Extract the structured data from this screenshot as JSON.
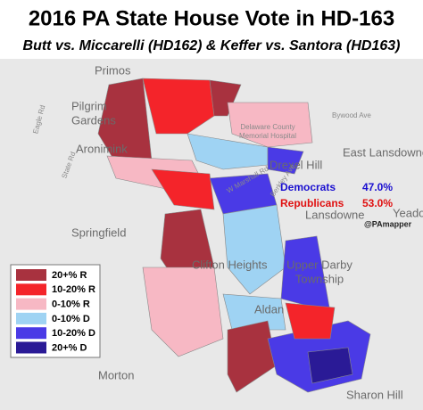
{
  "header": {
    "title": "2016 PA State House Vote in HD-163",
    "subtitle": "Butt vs. Miccarelli (HD162) & Keffer vs. Santora (HD163)"
  },
  "results": [
    {
      "party": "Democrats",
      "value": 47.0,
      "label": "47.0%",
      "color": "#1a0fd0"
    },
    {
      "party": "Republicans",
      "value": 53.0,
      "label": "53.0%",
      "color": "#e01010"
    }
  ],
  "credit": "@PAmapper",
  "legend": [
    {
      "label": "20+% R",
      "color": "#a8323f"
    },
    {
      "label": "10-20% R",
      "color": "#f4242a"
    },
    {
      "label": "0-10% R",
      "color": "#f7b8c4"
    },
    {
      "label": "0-10% D",
      "color": "#9fd3f3"
    },
    {
      "label": "10-20% D",
      "color": "#4a3ae6"
    },
    {
      "label": "20+% D",
      "color": "#2a1a96"
    }
  ],
  "places": [
    "Drexel Hill",
    "Springfield",
    "Clifton Heights",
    "Aldan",
    "Upper Darby",
    "Township",
    "Lansdowne",
    "East Lansdowne",
    "Sharon Hill",
    "Morton",
    "Primos",
    "Yeadon",
    "Pilgrim",
    "Gardens",
    "Aronimink",
    "Delaware County",
    "Memorial Hospital"
  ],
  "roads": [
    "Eagle Rd",
    "State Rd",
    "Bywood Ave",
    "W Marshall Rd",
    "Berkley Ave"
  ]
}
